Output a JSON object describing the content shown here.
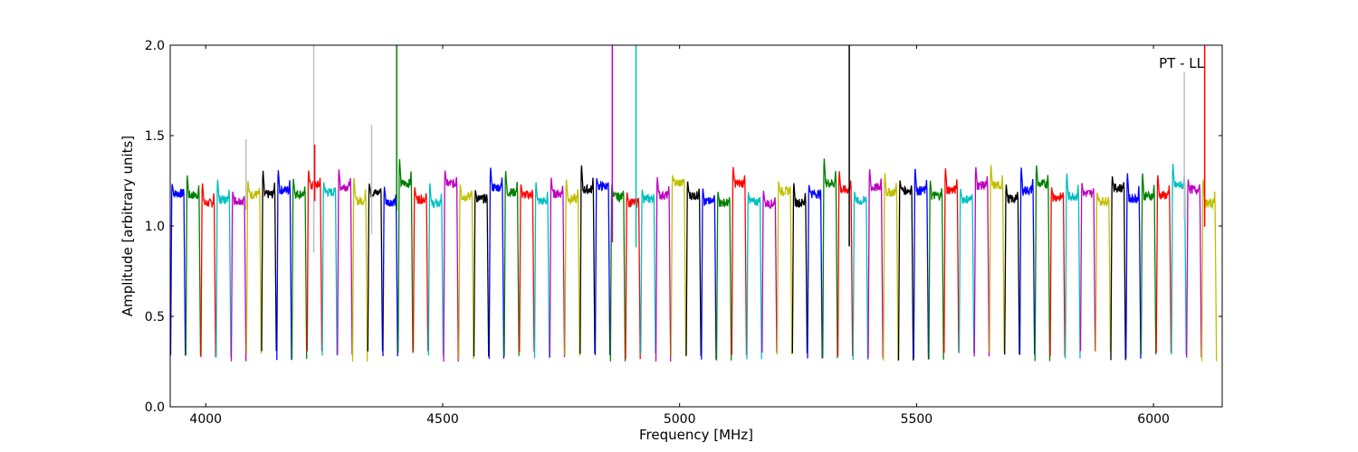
{
  "chart_data": {
    "type": "line",
    "title": "",
    "xlabel": "Frequency [MHz]",
    "ylabel": "Amplitude [arbitrary units]",
    "xlim": [
      3925,
      6145
    ],
    "ylim": [
      0.0,
      2.0
    ],
    "xticks": [
      4000,
      4500,
      5000,
      5500,
      6000
    ],
    "yticks": [
      0.0,
      0.5,
      1.0,
      1.5,
      2.0
    ],
    "xtick_labels": [
      "4000",
      "4500",
      "5000",
      "5500",
      "6000"
    ],
    "ytick_labels": [
      "0.0",
      "0.5",
      "1.0",
      "1.5",
      "2.0"
    ],
    "grid": false,
    "annotation": "PT - LL",
    "background_trace_color": "#bfbfbf",
    "series_colors": [
      "#0000ff",
      "#008000",
      "#ff0000",
      "#00bfbf",
      "#bf00bf",
      "#bfbf00",
      "#000000"
    ],
    "band_width_mhz": 32,
    "band_start_mhz": 3926,
    "band_count": 69,
    "band_level_typical": 1.18,
    "band_floor_typical": 0.28,
    "spikes": [
      {
        "x": 4228,
        "y": 2.0,
        "color": "#bfbfbf"
      },
      {
        "x": 4403,
        "y": 2.0,
        "color": "#008000"
      },
      {
        "x": 4858,
        "y": 2.0,
        "color": "#bf00bf"
      },
      {
        "x": 4908,
        "y": 2.0,
        "color": "#00bfbf"
      },
      {
        "x": 5358,
        "y": 2.0,
        "color": "#000000"
      },
      {
        "x": 6108,
        "y": 2.0,
        "color": "#ff0000"
      },
      {
        "x": 6065,
        "y": 1.85,
        "color": "#bfbfbf"
      },
      {
        "x": 4350,
        "y": 1.56,
        "color": "#bfbfbf"
      },
      {
        "x": 4085,
        "y": 1.48,
        "color": "#bfbfbf"
      },
      {
        "x": 4230,
        "y": 1.45,
        "color": "#ff0000"
      }
    ]
  }
}
